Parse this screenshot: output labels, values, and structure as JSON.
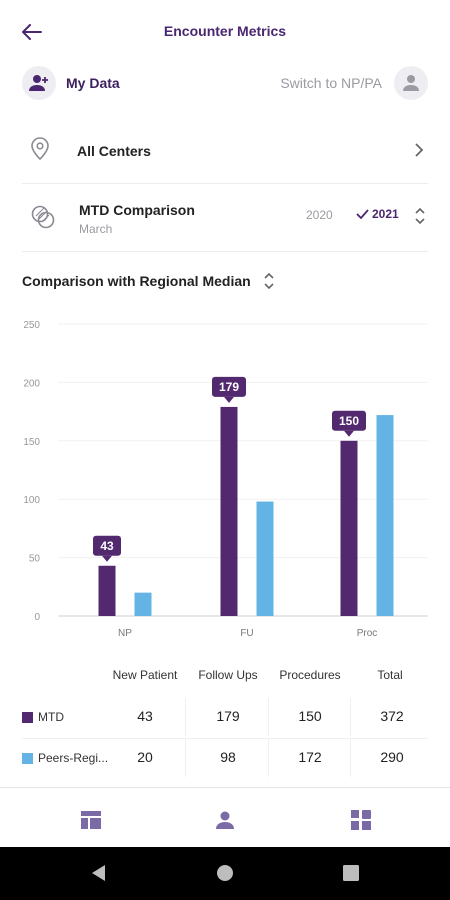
{
  "header": {
    "title": "Encounter Metrics"
  },
  "data_row": {
    "my_data_label": "My Data",
    "switch_label": "Switch to NP/PA"
  },
  "centers": {
    "label": "All Centers"
  },
  "mtd": {
    "title": "MTD Comparison",
    "subtitle": "March",
    "year_a": "2020",
    "year_b": "2021"
  },
  "comparison": {
    "label": "Comparison with Regional Median"
  },
  "colors": {
    "accent": "#4a2670",
    "mtd": "#52286e",
    "peers": "#63b3e4"
  },
  "chart_data": {
    "type": "bar",
    "categories": [
      "NP",
      "FU",
      "Proc"
    ],
    "series": [
      {
        "name": "MTD",
        "values": [
          43,
          179,
          150
        ]
      },
      {
        "name": "Peers-Regi...",
        "values": [
          20,
          98,
          172
        ]
      }
    ],
    "ylim": [
      0,
      250
    ],
    "yticks": [
      0,
      50,
      100,
      150,
      200,
      250
    ],
    "data_labels": [
      43,
      179,
      150
    ],
    "grid": true
  },
  "table": {
    "headers": [
      "New Patient",
      "Follow Ups",
      "Procedures",
      "Total"
    ],
    "rows": [
      {
        "name": "MTD",
        "values": [
          "43",
          "179",
          "150",
          "372"
        ]
      },
      {
        "name": "Peers-Regi...",
        "values": [
          "20",
          "98",
          "172",
          "290"
        ]
      }
    ]
  },
  "icons": {
    "back": "arrow-left-icon",
    "my_data": "user-plus-icon",
    "switch": "user-avatar-icon",
    "centers": "location-pin-icon",
    "mtd": "compare-circles-icon",
    "nav": [
      "table-icon",
      "person-icon",
      "dashboard-icon"
    ]
  }
}
